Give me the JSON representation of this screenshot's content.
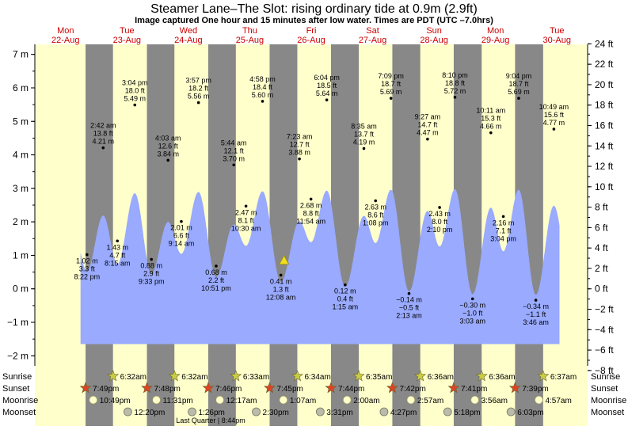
{
  "title": "Steamer Lane–The Slot: rising  ordinary tide at 0.9m (2.9ft)",
  "subtitle": "Image captured One hour and 15 minutes after low water. Times are PDT (UTC –7.0hrs)",
  "colors": {
    "day": "#ffffcc",
    "night": "#888888",
    "tide": "#99aaff",
    "date_label": "#cc0000",
    "sun_star": "#cccc44",
    "sunset_star": "#dd4422",
    "moonrise": "#ffffcc",
    "moonset": "#bbbbaa"
  },
  "chart_data": {
    "type": "area",
    "x_domain": [
      "2022-08-22 00:00",
      "2022-08-31 00:00"
    ],
    "y_left": {
      "unit": "m",
      "range": [
        -2.3,
        7.3
      ],
      "ticks": [
        -2,
        -1,
        0,
        1,
        2,
        3,
        4,
        5,
        6,
        7
      ],
      "tick_labels": [
        "−2 m",
        "−1 m",
        "0 m",
        "1 m",
        "2 m",
        "3 m",
        "4 m",
        "5 m",
        "6 m",
        "7 m"
      ]
    },
    "y_right": {
      "unit": "ft",
      "ticks": [
        -8,
        -6,
        -4,
        -2,
        0,
        2,
        4,
        6,
        8,
        10,
        12,
        14,
        16,
        18,
        20,
        22,
        24
      ],
      "tick_labels": [
        "−8 ft",
        "−6 ft",
        "−4 ft",
        "−2 ft",
        "0 ft",
        "2 ft",
        "4 ft",
        "6 ft",
        "8 ft",
        "10 ft",
        "12 ft",
        "14 ft",
        "16 ft",
        "18 ft",
        "20 ft",
        "22 ft",
        "24 ft"
      ]
    },
    "days": [
      {
        "name": "Mon",
        "date": "22-Aug"
      },
      {
        "name": "Tue",
        "date": "23-Aug"
      },
      {
        "name": "Wed",
        "date": "24-Aug"
      },
      {
        "name": "Thu",
        "date": "25-Aug"
      },
      {
        "name": "Fri",
        "date": "26-Aug"
      },
      {
        "name": "Sat",
        "date": "27-Aug"
      },
      {
        "name": "Sun",
        "date": "28-Aug"
      },
      {
        "name": "Mon",
        "date": "29-Aug"
      },
      {
        "name": "Tue",
        "date": "30-Aug"
      }
    ],
    "extremes": [
      {
        "t": "2022-08-22 20:22",
        "m": 1.02,
        "time": "8:22 pm",
        "ft": "3.3 ft",
        "mt": "1.02 m",
        "type": "low"
      },
      {
        "t": "2022-08-23 02:42",
        "m": 4.21,
        "time": "2:42 am",
        "ft": "13.8 ft",
        "mt": "4.21 m",
        "type": "high"
      },
      {
        "t": "2022-08-23 08:15",
        "m": 1.43,
        "time": "8:15 am",
        "ft": "4.7 ft",
        "mt": "1.43 m",
        "type": "low"
      },
      {
        "t": "2022-08-23 15:04",
        "m": 5.49,
        "time": "3:04 pm",
        "ft": "18.0 ft",
        "mt": "5.49 m",
        "type": "high"
      },
      {
        "t": "2022-08-23 21:33",
        "m": 0.88,
        "time": "9:33 pm",
        "ft": "2.9 ft",
        "mt": "0.88 m",
        "type": "low"
      },
      {
        "t": "2022-08-24 04:03",
        "m": 3.84,
        "time": "4:03 am",
        "ft": "12.6 ft",
        "mt": "3.84 m",
        "type": "high"
      },
      {
        "t": "2022-08-24 09:14",
        "m": 2.01,
        "time": "9:14 am",
        "ft": "6.6 ft",
        "mt": "2.01 m",
        "type": "low"
      },
      {
        "t": "2022-08-24 15:57",
        "m": 5.56,
        "time": "3:57 pm",
        "ft": "18.2 ft",
        "mt": "5.56 m",
        "type": "high"
      },
      {
        "t": "2022-08-24 22:51",
        "m": 0.68,
        "time": "10:51 pm",
        "ft": "2.2 ft",
        "mt": "0.68 m",
        "type": "low"
      },
      {
        "t": "2022-08-25 05:44",
        "m": 3.7,
        "time": "5:44 am",
        "ft": "12.1 ft",
        "mt": "3.70 m",
        "type": "high"
      },
      {
        "t": "2022-08-25 10:30",
        "m": 2.47,
        "time": "10:30 am",
        "ft": "8.1 ft",
        "mt": "2.47 m",
        "type": "low"
      },
      {
        "t": "2022-08-25 16:58",
        "m": 5.6,
        "time": "4:58 pm",
        "ft": "18.4 ft",
        "mt": "5.60 m",
        "type": "high"
      },
      {
        "t": "2022-08-26 00:08",
        "m": 0.41,
        "time": "12:08 am",
        "ft": "1.3 ft",
        "mt": "0.41 m",
        "type": "low"
      },
      {
        "t": "2022-08-26 07:23",
        "m": 3.88,
        "time": "7:23 am",
        "ft": "12.7 ft",
        "mt": "3.88 m",
        "type": "high"
      },
      {
        "t": "2022-08-26 11:54",
        "m": 2.68,
        "time": "11:54 am",
        "ft": "8.8 ft",
        "mt": "2.68 m",
        "type": "low"
      },
      {
        "t": "2022-08-26 18:04",
        "m": 5.64,
        "time": "6:04 pm",
        "ft": "18.5 ft",
        "mt": "5.64 m",
        "type": "high"
      },
      {
        "t": "2022-08-27 01:15",
        "m": 0.12,
        "time": "1:15 am",
        "ft": "0.4 ft",
        "mt": "0.12 m",
        "type": "low"
      },
      {
        "t": "2022-08-27 08:35",
        "m": 4.19,
        "time": "8:35 am",
        "ft": "13.7 ft",
        "mt": "4.19 m",
        "type": "high"
      },
      {
        "t": "2022-08-27 13:08",
        "m": 2.63,
        "time": "1:08 pm",
        "ft": "8.6 ft",
        "mt": "2.63 m",
        "type": "low"
      },
      {
        "t": "2022-08-27 19:09",
        "m": 5.69,
        "time": "7:09 pm",
        "ft": "18.7 ft",
        "mt": "5.69 m",
        "type": "high"
      },
      {
        "t": "2022-08-28 02:13",
        "m": -0.14,
        "time": "2:13 am",
        "ft": "−0.5 ft",
        "mt": "−0.14 m",
        "type": "low"
      },
      {
        "t": "2022-08-28 09:27",
        "m": 4.47,
        "time": "9:27 am",
        "ft": "14.7 ft",
        "mt": "4.47 m",
        "type": "high"
      },
      {
        "t": "2022-08-28 14:10",
        "m": 2.43,
        "time": "2:10 pm",
        "ft": "8.0 ft",
        "mt": "2.43 m",
        "type": "low"
      },
      {
        "t": "2022-08-28 20:10",
        "m": 5.72,
        "time": "8:10 pm",
        "ft": "18.8 ft",
        "mt": "5.72 m",
        "type": "high"
      },
      {
        "t": "2022-08-29 03:03",
        "m": -0.3,
        "time": "3:03 am",
        "ft": "−1.0 ft",
        "mt": "−0.30 m",
        "type": "low"
      },
      {
        "t": "2022-08-29 10:11",
        "m": 4.66,
        "time": "10:11 am",
        "ft": "15.3 ft",
        "mt": "4.66 m",
        "type": "high"
      },
      {
        "t": "2022-08-29 15:04",
        "m": 2.16,
        "time": "3:04 pm",
        "ft": "7.1 ft",
        "mt": "2.16 m",
        "type": "low"
      },
      {
        "t": "2022-08-29 21:04",
        "m": 5.69,
        "time": "9:04 pm",
        "ft": "18.7 ft",
        "mt": "5.69 m",
        "type": "high"
      },
      {
        "t": "2022-08-30 03:46",
        "m": -0.34,
        "time": "3:46 am",
        "ft": "−1.1 ft",
        "mt": "−0.34 m",
        "type": "low"
      },
      {
        "t": "2022-08-30 10:49",
        "m": 4.77,
        "time": "10:49 am",
        "ft": "15.6 ft",
        "mt": "4.77 m",
        "type": "high"
      }
    ],
    "current": {
      "t": "2022-08-26 01:23",
      "m": 0.9
    },
    "sunrise": [
      {
        "t": "2022-08-23 06:32",
        "label": "6:32am"
      },
      {
        "t": "2022-08-24 06:32",
        "label": "6:32am"
      },
      {
        "t": "2022-08-25 06:33",
        "label": "6:33am"
      },
      {
        "t": "2022-08-26 06:34",
        "label": "6:34am"
      },
      {
        "t": "2022-08-27 06:35",
        "label": "6:35am"
      },
      {
        "t": "2022-08-28 06:36",
        "label": "6:36am"
      },
      {
        "t": "2022-08-29 06:36",
        "label": "6:36am"
      },
      {
        "t": "2022-08-30 06:37",
        "label": "6:37am"
      }
    ],
    "sunset": [
      {
        "t": "2022-08-22 19:49",
        "label": "7:49pm"
      },
      {
        "t": "2022-08-23 19:48",
        "label": "7:48pm"
      },
      {
        "t": "2022-08-24 19:46",
        "label": "7:46pm"
      },
      {
        "t": "2022-08-25 19:45",
        "label": "7:45pm"
      },
      {
        "t": "2022-08-26 19:44",
        "label": "7:44pm"
      },
      {
        "t": "2022-08-27 19:42",
        "label": "7:42pm"
      },
      {
        "t": "2022-08-28 19:41",
        "label": "7:41pm"
      },
      {
        "t": "2022-08-29 19:39",
        "label": "7:39pm"
      }
    ],
    "moonrise": [
      {
        "t": "2022-08-22 22:49",
        "label": "10:49pm"
      },
      {
        "t": "2022-08-23 23:31",
        "label": "11:31pm"
      },
      {
        "t": "2022-08-25 00:17",
        "label": "12:17am"
      },
      {
        "t": "2022-08-26 01:07",
        "label": "1:07am"
      },
      {
        "t": "2022-08-27 02:00",
        "label": "2:00am"
      },
      {
        "t": "2022-08-28 02:57",
        "label": "2:57am"
      },
      {
        "t": "2022-08-29 03:56",
        "label": "3:56am"
      },
      {
        "t": "2022-08-30 04:57",
        "label": "4:57am"
      }
    ],
    "moonset": [
      {
        "t": "2022-08-23 12:20",
        "label": "12:20pm"
      },
      {
        "t": "2022-08-24 13:26",
        "label": "1:26pm"
      },
      {
        "t": "2022-08-25 14:30",
        "label": "2:30pm"
      },
      {
        "t": "2022-08-26 15:31",
        "label": "3:31pm"
      },
      {
        "t": "2022-08-27 16:27",
        "label": "4:27pm"
      },
      {
        "t": "2022-08-28 17:18",
        "label": "5:18pm"
      },
      {
        "t": "2022-08-29 18:03",
        "label": "6:03pm"
      }
    ],
    "moon_phase": {
      "t": "2022-08-24 20:44",
      "label": "Last Quarter | 8:44pm"
    },
    "row_labels": {
      "sunrise": "Sunrise",
      "sunset": "Sunset",
      "moonrise": "Moonrise",
      "moonset": "Moonset"
    }
  }
}
